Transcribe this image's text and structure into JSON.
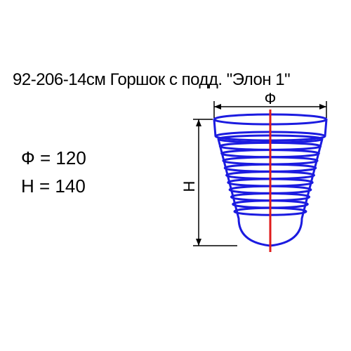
{
  "title": "92-206-14см Горшок с подд. \"Элон 1\"",
  "dimensions": {
    "phi_label": "Ф = 120",
    "h_label": "H = 140"
  },
  "diagram": {
    "pot_color": "#1b1be0",
    "axis_color": "#e01b1b",
    "dim_line_color": "#000000",
    "stroke_width": 3,
    "top_width": 160,
    "bottom_width": 90,
    "height": 175,
    "rim_height": 24,
    "num_ribs": 11,
    "phi_symbol": "Ф",
    "h_symbol": "H"
  }
}
